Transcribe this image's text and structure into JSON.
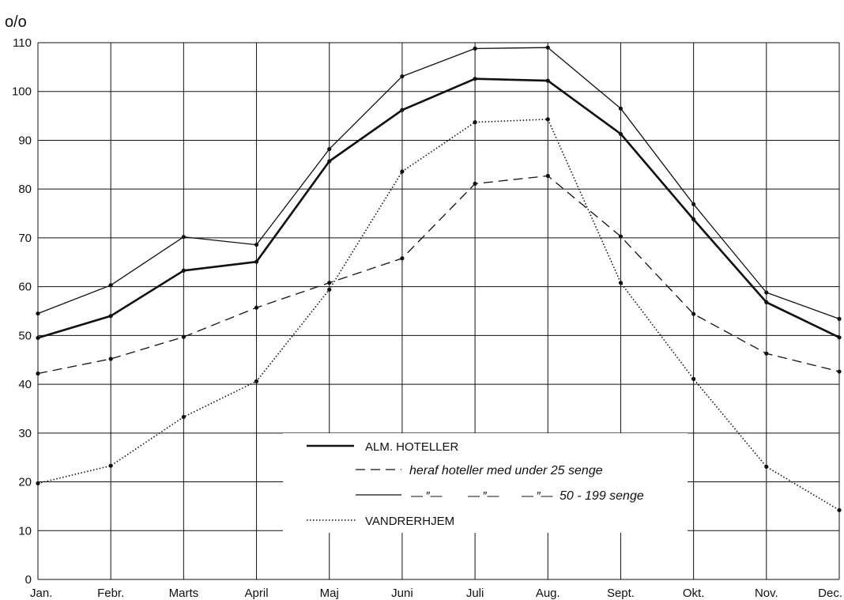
{
  "chart_data": {
    "type": "line",
    "y_unit": "o/o",
    "categories": [
      "Jan.",
      "Febr.",
      "Marts",
      "April",
      "Maj",
      "Juni",
      "Juli",
      "Aug.",
      "Sept.",
      "Okt.",
      "Nov.",
      "Dec."
    ],
    "ylim": [
      0,
      110
    ],
    "yticks": [
      0,
      10,
      20,
      30,
      40,
      50,
      60,
      70,
      80,
      90,
      100,
      110
    ],
    "grid": true,
    "legend_position": "center-bottom",
    "series": [
      {
        "name": "ALM. HOTELLER",
        "style": "thick-solid",
        "values": [
          49.5,
          54,
          63.3,
          65.1,
          85.7,
          96.2,
          102.6,
          102.2,
          91.3,
          73.8,
          56.8,
          49.6
        ]
      },
      {
        "name": "heraf hoteller med under 25 senge",
        "style": "dashed",
        "values": [
          42.2,
          45.2,
          49.7,
          55.7,
          60.8,
          65.8,
          81.1,
          82.7,
          70.3,
          54.4,
          46.3,
          42.6
        ]
      },
      {
        "name": "— ″— — ″— — ″— 50 - 199 senge",
        "style": "thin-solid",
        "values": [
          54.5,
          60.3,
          70.2,
          68.6,
          88.2,
          103.1,
          108.8,
          109.0,
          96.5,
          76.9,
          58.8,
          53.4
        ]
      },
      {
        "name": "VANDRERHJEM",
        "style": "dotted",
        "values": [
          19.7,
          23.3,
          33.3,
          40.6,
          59.4,
          83.6,
          93.7,
          94.3,
          60.8,
          41.1,
          23.1,
          14.2
        ]
      }
    ],
    "legend": {
      "line1": "ALM. HOTELLER",
      "line2": "heraf hoteller med under 25 senge",
      "line3_prefix": [
        "— ″—",
        "— ″—",
        "— ″—"
      ],
      "line3": "50 - 199 senge",
      "line4": "VANDRERHJEM"
    }
  }
}
